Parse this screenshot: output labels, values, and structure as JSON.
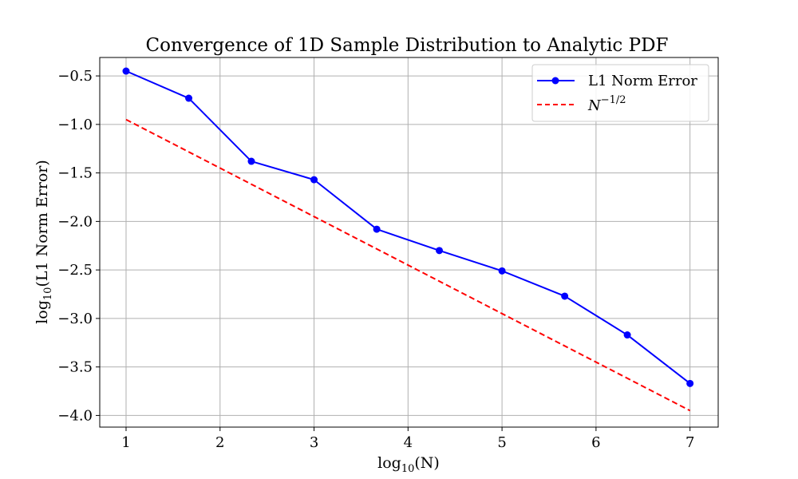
{
  "chart_data": {
    "type": "line",
    "title": "Convergence of 1D Sample Distribution to Analytic PDF",
    "xlabel": {
      "prefix": "log",
      "sub": "10",
      "suffix": "(N)"
    },
    "ylabel": {
      "prefix": "log",
      "sub": "10",
      "suffix": "(L1 Norm Error)"
    },
    "xlim": [
      0.72,
      7.3
    ],
    "ylim": [
      -4.12,
      -0.31
    ],
    "xticks": [
      1,
      2,
      3,
      4,
      5,
      6,
      7
    ],
    "xtick_labels": [
      "1",
      "2",
      "3",
      "4",
      "5",
      "6",
      "7"
    ],
    "yticks": [
      -4.0,
      -3.5,
      -3.0,
      -2.5,
      -2.0,
      -1.5,
      -1.0,
      -0.5
    ],
    "ytick_labels": [
      "−4.0",
      "−3.5",
      "−3.0",
      "−2.5",
      "−2.0",
      "−1.5",
      "−1.0",
      "−0.5"
    ],
    "grid": true,
    "legend_position": "top-right",
    "series": [
      {
        "name": "L1 Norm Error",
        "color": "#0000ff",
        "style": "solid",
        "marker": "circle",
        "x": [
          1.0,
          1.667,
          2.333,
          3.0,
          3.667,
          4.333,
          5.0,
          5.667,
          6.333,
          7.0
        ],
        "y": [
          -0.45,
          -0.73,
          -1.38,
          -1.57,
          -2.08,
          -2.3,
          -2.51,
          -2.77,
          -3.17,
          -3.67
        ]
      },
      {
        "name_base": "N",
        "name_sup": "−1/2",
        "color": "#ff0000",
        "style": "dashed",
        "marker": "none",
        "x": [
          1.0,
          7.0
        ],
        "y": [
          -0.95,
          -3.95
        ]
      }
    ]
  }
}
